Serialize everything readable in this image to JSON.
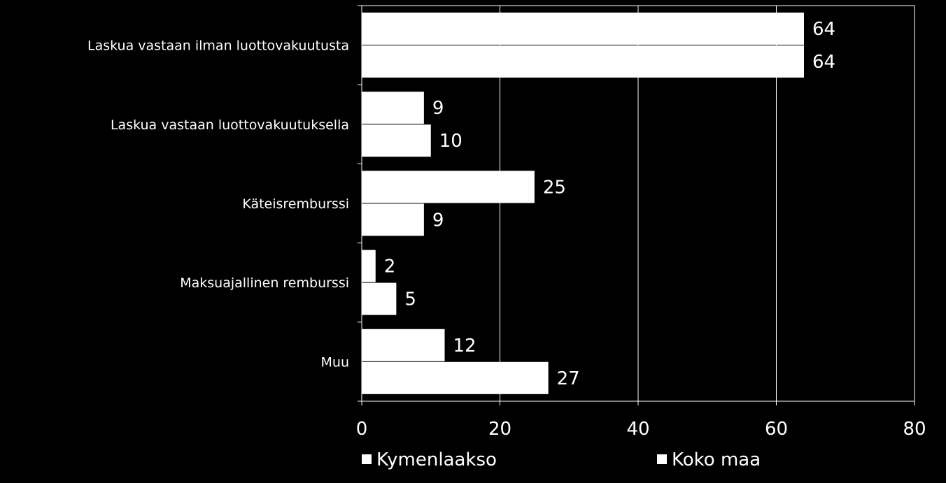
{
  "chart_data": {
    "type": "bar",
    "orientation": "horizontal",
    "categories": [
      "Laskua vastaan ilman luottovakuutusta",
      "Laskua vastaan luottovakuutuksella",
      "Käteisremburssi",
      "Maksuajallinen remburssi",
      "Muu"
    ],
    "series": [
      {
        "name": "Kymenlaakso",
        "values": [
          64,
          9,
          25,
          2,
          12
        ],
        "labels": [
          "64",
          "9",
          "25",
          "2",
          "12"
        ]
      },
      {
        "name": "Koko maa",
        "values": [
          64,
          10,
          9,
          5,
          27
        ],
        "labels": [
          "64",
          "10",
          "9",
          "5",
          "27"
        ]
      }
    ],
    "xlim": [
      0,
      80
    ],
    "x_ticks": [
      "0",
      "20",
      "40",
      "60",
      "80"
    ],
    "grid": true,
    "legend_position": "bottom",
    "colors": {
      "background": "#000000",
      "bars": "#ffffff",
      "text": "#ffffff",
      "grid": "#ffffff"
    }
  }
}
